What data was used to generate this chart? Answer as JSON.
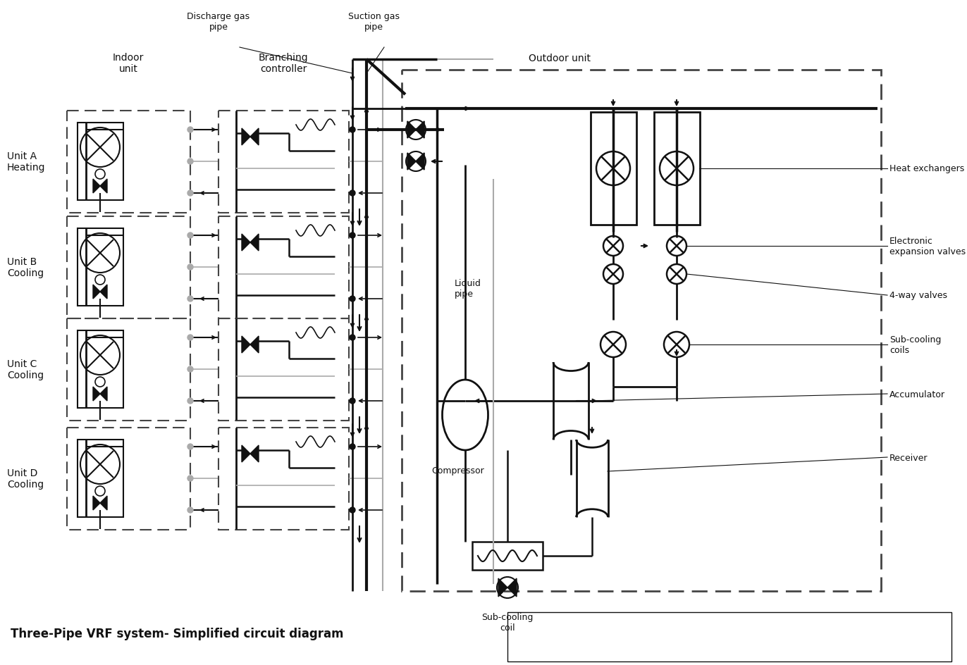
{
  "title": "Three-Pipe VRF system- Simplified circuit diagram",
  "bg_color": "#ffffff",
  "lc": "#111111",
  "gray": "#aaaaaa",
  "unit_labels": [
    "Unit A\nHeating",
    "Unit B\nCooling",
    "Unit C\nCooling",
    "Unit D\nCooling"
  ],
  "labels": {
    "indoor_unit": "Indoor\nunit",
    "branching_controller": "Branching\ncontroller",
    "outdoor_unit": "Outdoor unit",
    "discharge_gas_pipe": "Discharge gas\npipe",
    "suction_gas_pipe": "Suction gas\npipe",
    "liquid_pipe": "Liquid\npipe",
    "heat_exchangers": "Heat exchangers",
    "electronic_expansion_valves": "Electronic\nexpansion valves",
    "four_way_valves": "4-way valves",
    "sub_cooling_coils": "Sub-cooling\ncoils",
    "accumulator": "Accumulator",
    "receiver": "Receiver",
    "compressor": "Compressor",
    "sub_cooling_coil": "Sub-cooling\ncoil"
  },
  "figsize": [
    13.72,
    9.45
  ],
  "dpi": 100
}
